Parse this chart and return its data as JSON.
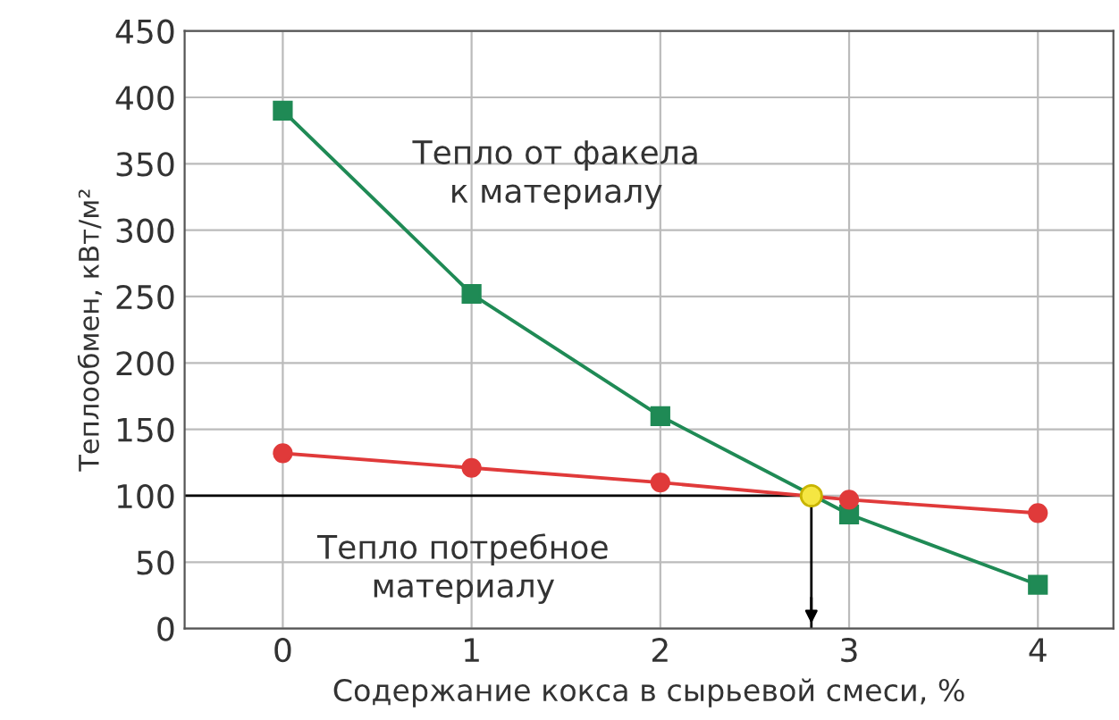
{
  "chart_data": {
    "type": "line",
    "xlabel": "Содержание кокса в сырьевой смеси, %",
    "ylabel": "Теплообмен, кВт/м²",
    "xlim": [
      -0.52,
      4.4
    ],
    "xticks": [
      0,
      1,
      2,
      3,
      4
    ],
    "ylim": [
      0,
      450
    ],
    "yticks": [
      0,
      50,
      100,
      150,
      200,
      250,
      300,
      350,
      400,
      450
    ],
    "grid": true,
    "series": [
      {
        "name": "Тепло от факела\nк материалу",
        "color": "#1f8a55",
        "marker": "square",
        "x": [
          0,
          1,
          2,
          3,
          4
        ],
        "values": [
          390,
          252,
          160,
          86,
          33
        ]
      },
      {
        "name": "Тепло потребное\nматериалу",
        "color": "#e03a3a",
        "marker": "circle",
        "x": [
          0,
          1,
          2,
          3,
          4
        ],
        "values": [
          132,
          121,
          110,
          97,
          87
        ]
      },
      {
        "type": "scatter",
        "color": "#f5e642",
        "marker": "circle",
        "x": [
          2.8
        ],
        "values": [
          100
        ]
      }
    ],
    "ref_lines": [
      {
        "axis": "y",
        "value": 100,
        "color": "#000000"
      },
      {
        "axis": "x",
        "value": 2.8,
        "color": "#000000"
      }
    ]
  }
}
